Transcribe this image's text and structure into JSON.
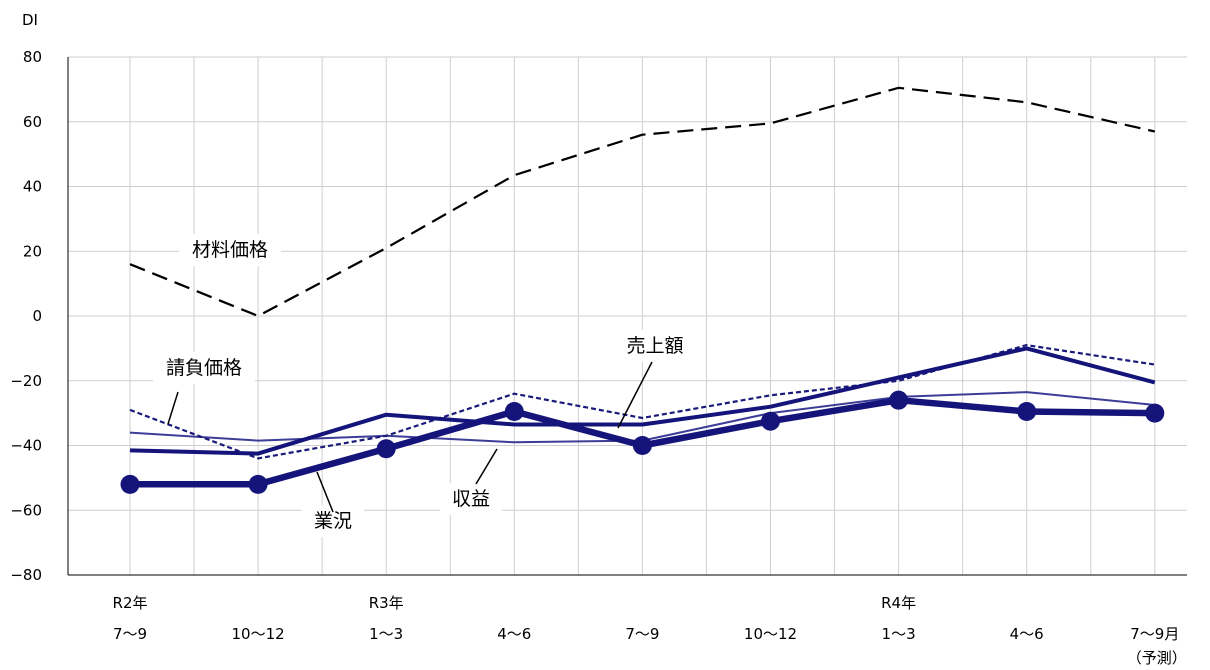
{
  "chart_data": {
    "type": "line",
    "y_unit_label": "DI",
    "ylim": [
      -80,
      80
    ],
    "y_ticks": [
      "80",
      "60",
      "40",
      "20",
      "0",
      "−20",
      "−40",
      "−60",
      "−80"
    ],
    "grid": true,
    "categories": [
      {
        "year": "R2年",
        "period": "7～9",
        "note": ""
      },
      {
        "year": "",
        "period": "10～12",
        "note": ""
      },
      {
        "year": "R3年",
        "period": "1～3",
        "note": ""
      },
      {
        "year": "",
        "period": "4～6",
        "note": ""
      },
      {
        "year": "",
        "period": "7～9",
        "note": ""
      },
      {
        "year": "",
        "period": "10～12",
        "note": ""
      },
      {
        "year": "R4年",
        "period": "1～3",
        "note": ""
      },
      {
        "year": "",
        "period": "4～6",
        "note": ""
      },
      {
        "year": "",
        "period": "7～9月",
        "note": "（予測）"
      }
    ],
    "series": [
      {
        "name": "材料価格",
        "style": "long-dash",
        "color": "#000000",
        "values": [
          16,
          0,
          21,
          43.5,
          56,
          59.5,
          70.5,
          66,
          57
        ]
      },
      {
        "name": "請負価格",
        "style": "short-dash",
        "color": "#1a1a7a",
        "values": [
          -29,
          -44,
          -37,
          -24,
          -31.5,
          -24.5,
          -20,
          -9,
          -15
        ]
      },
      {
        "name": "売上額",
        "style": "thick",
        "color": "#14147a",
        "values": [
          -41.5,
          -42.5,
          -30.5,
          -33.5,
          -33.5,
          -28,
          -19,
          -10,
          -20.5
        ]
      },
      {
        "name": "収益",
        "style": "thin",
        "color": "#3d3d99",
        "values": [
          -36,
          -38.5,
          -37,
          -39,
          -38.5,
          -30,
          -25,
          -23.5,
          -27.5
        ]
      },
      {
        "name": "業況",
        "style": "thick-markers",
        "color": "#14147a",
        "values": [
          -52,
          -52,
          -41,
          -29.5,
          -40,
          -32.5,
          -26,
          -29.5,
          -30
        ]
      }
    ],
    "annotations": [
      {
        "label": "材料価格"
      },
      {
        "label": "請負価格"
      },
      {
        "label": "売上額"
      },
      {
        "label": "収益"
      },
      {
        "label": "業況"
      }
    ]
  }
}
